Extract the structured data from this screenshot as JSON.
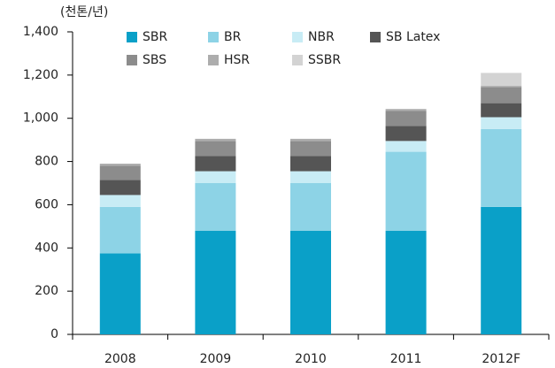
{
  "chart_data": {
    "type": "stacked_bar",
    "y_unit_label": "(천톤/년)",
    "categories": [
      "2008",
      "2009",
      "2010",
      "2011",
      "2012F"
    ],
    "series": [
      {
        "name": "SBR",
        "color": "#0aa0c8",
        "values": [
          375,
          480,
          480,
          480,
          590
        ]
      },
      {
        "name": "BR",
        "color": "#8dd3e6",
        "values": [
          215,
          220,
          220,
          365,
          360
        ]
      },
      {
        "name": "NBR",
        "color": "#c8ecf5",
        "values": [
          55,
          55,
          55,
          50,
          55
        ]
      },
      {
        "name": "SB Latex",
        "color": "#555555",
        "values": [
          70,
          70,
          70,
          70,
          65
        ]
      },
      {
        "name": "SBS",
        "color": "#8c8c8c",
        "values": [
          65,
          70,
          70,
          70,
          75
        ]
      },
      {
        "name": "HSR",
        "color": "#adadad",
        "values": [
          10,
          10,
          10,
          8,
          5
        ]
      },
      {
        "name": "SSBR",
        "color": "#d3d3d3",
        "values": [
          0,
          0,
          0,
          0,
          60
        ]
      }
    ],
    "ylim": [
      0,
      1400
    ],
    "yticks": [
      0,
      200,
      400,
      600,
      800,
      {
        "value": 1000,
        "label": "1,000"
      },
      {
        "value": 1200,
        "label": "1,200"
      },
      {
        "value": 1400,
        "label": "1,400"
      }
    ],
    "legend": "top"
  }
}
